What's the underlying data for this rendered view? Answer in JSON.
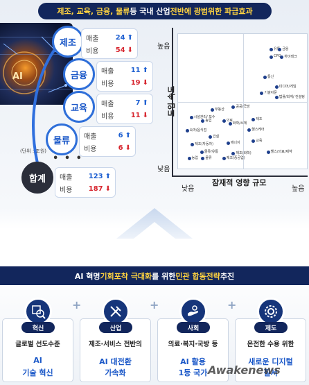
{
  "banner": {
    "pre": "제조, 교육, 금융, 물류",
    "post": " 등 국내 산업 ",
    "hl": "전반에 광범위한 파급효과"
  },
  "hero": {
    "text": "AI"
  },
  "sectors": [
    {
      "name": "제조",
      "sales": "24",
      "cost": "54"
    },
    {
      "name": "금융",
      "sales": "11",
      "cost": "19"
    },
    {
      "name": "교육",
      "sales": "7",
      "cost": "11"
    },
    {
      "name": "물류",
      "sales": "6",
      "cost": "6"
    },
    {
      "name": "합계",
      "sales": "123",
      "cost": "187"
    }
  ],
  "stat_labels": {
    "sales": "매출",
    "cost": "비용"
  },
  "arrows": {
    "up": "⬆",
    "down": "⬇"
  },
  "ellipsis": "• • •",
  "unit": "(단위 : 조원)",
  "matrix": {
    "y_axis": {
      "high": "높음",
      "title": "도입 속도",
      "low": "낮음"
    },
    "x_axis": {
      "low": "낮음",
      "title": "잠재적 영향 규모",
      "high": "높음"
    },
    "points": [
      {
        "label": "유통",
        "x": 0.83,
        "y": 0.92
      },
      {
        "label": "금융",
        "x": 0.91,
        "y": 0.92
      },
      {
        "label": "CPG",
        "x": 0.83,
        "y": 0.86
      },
      {
        "label": "하이테크",
        "x": 0.93,
        "y": 0.86
      },
      {
        "label": "통신",
        "x": 0.77,
        "y": 0.7
      },
      {
        "label": "미디어/게임",
        "x": 0.88,
        "y": 0.62
      },
      {
        "label": "기술자문",
        "x": 0.74,
        "y": 0.57
      },
      {
        "label": "법률/회계/ 컨설팅",
        "x": 0.88,
        "y": 0.54
      },
      {
        "label": "부동산",
        "x": 0.27,
        "y": 0.44
      },
      {
        "label": "공공/국방",
        "x": 0.47,
        "y": 0.46
      },
      {
        "label": "시설관리/ 보수",
        "x": 0.07,
        "y": 0.38
      },
      {
        "label": "농업",
        "x": 0.18,
        "y": 0.35
      },
      {
        "label": "의료",
        "x": 0.38,
        "y": 0.35
      },
      {
        "label": "화학/소재",
        "x": 0.44,
        "y": 0.33
      },
      {
        "label": "제조",
        "x": 0.66,
        "y": 0.36
      },
      {
        "label": "숙박/음식점",
        "x": 0.03,
        "y": 0.27
      },
      {
        "label": "헬스케어",
        "x": 0.62,
        "y": 0.28
      },
      {
        "label": "건설",
        "x": 0.25,
        "y": 0.22
      },
      {
        "label": "제조(자동차)",
        "x": 0.08,
        "y": 0.16
      },
      {
        "label": "교육",
        "x": 0.66,
        "y": 0.19
      },
      {
        "label": "에너지",
        "x": 0.42,
        "y": 0.17
      },
      {
        "label": "물류/유통",
        "x": 0.17,
        "y": 0.1
      },
      {
        "label": "제조(화학)",
        "x": 0.47,
        "y": 0.09
      },
      {
        "label": "농업",
        "x": 0.05,
        "y": 0.05
      },
      {
        "label": "물류",
        "x": 0.18,
        "y": 0.05
      },
      {
        "label": "제조(중공업)",
        "x": 0.38,
        "y": 0.05
      },
      {
        "label": "헬스/의료/제약",
        "x": 0.8,
        "y": 0.1
      }
    ]
  },
  "strategy": {
    "pre": "AI 혁명 ",
    "hl1": "기회포착 극대화",
    "mid": "를 위한 ",
    "hl2": "민관 합동전략",
    "post": " 추진"
  },
  "cards": [
    {
      "pill": "혁신",
      "desc": "글로벌 선도수준",
      "r1": "AI",
      "r2": "기술 혁신",
      "icon": "search-chip-icon"
    },
    {
      "pill": "산업",
      "desc": "제조·서비스 전반의",
      "r1": "AI 대전환",
      "r2": "가속화",
      "icon": "tools-icon"
    },
    {
      "pill": "사회",
      "desc": "의료·복지·국방 등",
      "r1": "AI 활용",
      "r2": "1등 국가",
      "icon": "hand-icon"
    },
    {
      "pill": "제도",
      "desc": "온전한 수용 위한",
      "r1": "새로운 디지털",
      "r2": "질서",
      "icon": "gear-icon"
    }
  ],
  "watermark": "Awakenews",
  "colors": {
    "navy": "#12265c",
    "accent_yellow": "#ffd340",
    "blue": "#1b58c8",
    "red": "#d7262f"
  }
}
